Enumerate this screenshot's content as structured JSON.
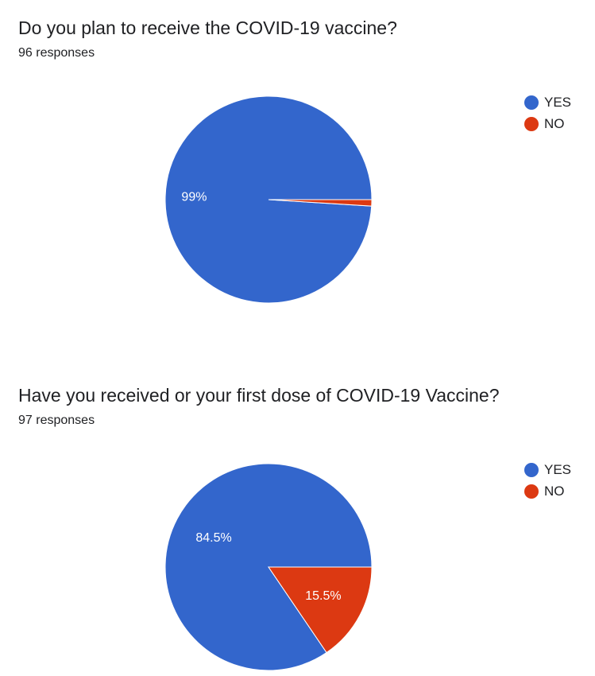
{
  "charts": [
    {
      "title": "Do you plan to receive the COVID-19 vaccine?",
      "response_count": "96 responses",
      "chart_data": {
        "type": "pie",
        "categories": [
          "YES",
          "NO"
        ],
        "values": [
          99,
          1
        ],
        "value_labels": [
          "99%",
          ""
        ],
        "colors": [
          "#3366cc",
          "#dc3912"
        ],
        "legend": "right"
      }
    },
    {
      "title": "Have you received or your first dose of COVID-19 Vaccine?",
      "response_count": "97 responses",
      "chart_data": {
        "type": "pie",
        "categories": [
          "YES",
          "NO"
        ],
        "values": [
          84.5,
          15.5
        ],
        "value_labels": [
          "84.5%",
          "15.5%"
        ],
        "colors": [
          "#3366cc",
          "#dc3912"
        ],
        "legend": "right"
      }
    }
  ]
}
